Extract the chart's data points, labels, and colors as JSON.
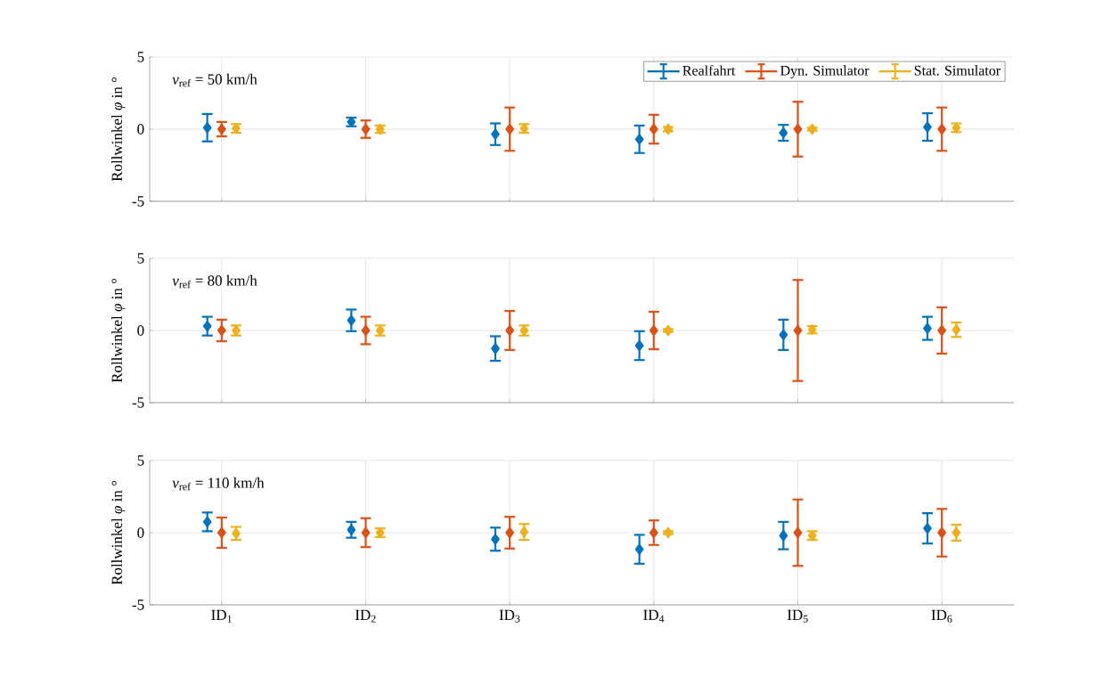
{
  "chart_data": [
    {
      "type": "scatter",
      "categories": [
        null,
        null,
        null,
        null,
        null,
        null
      ],
      "ylabel": "Rollwinkel *φ* in °",
      "annotations": [
        "*v*$_{ref}$ = 50 km/h"
      ],
      "ylim": [
        -5,
        5
      ],
      "yticks": [
        -5,
        0,
        5
      ],
      "grid": true,
      "marker": "diamond",
      "legend": "top right",
      "tick_labels": "y",
      "series": [
        {
          "name": "Realfahrt",
          "color": "#0072bd",
          "values": [
            0.1,
            0.5,
            -0.35,
            -0.7,
            -0.25,
            0.15
          ],
          "errors": [
            0.95,
            0.3,
            0.75,
            0.95,
            0.55,
            0.95
          ]
        },
        {
          "name": "Dyn. Simulator",
          "color": "#d95319",
          "values": [
            0,
            0,
            0,
            0,
            0,
            0
          ],
          "errors": [
            0.5,
            0.6,
            1.5,
            1.0,
            1.9,
            1.5
          ]
        },
        {
          "name": "Stat. Simulator",
          "color": "#edb120",
          "values": [
            0.05,
            0,
            0.05,
            0,
            0,
            0.1
          ],
          "errors": [
            0.3,
            0.25,
            0.3,
            0.15,
            0.1,
            0.3
          ]
        }
      ]
    },
    {
      "type": "scatter",
      "categories": [
        null,
        null,
        null,
        null,
        null,
        null
      ],
      "ylabel": "Rollwinkel *φ* in °",
      "annotations": [
        "*v*$_{ref}$ = 80 km/h"
      ],
      "ylim": [
        -5,
        5
      ],
      "yticks": [
        -5,
        0,
        5
      ],
      "grid": true,
      "marker": "diamond",
      "tick_labels": "y",
      "series": [
        {
          "color": "#0072bd",
          "values": [
            0.3,
            0.7,
            -1.25,
            -1.05,
            -0.3,
            0.15
          ],
          "errors": [
            0.65,
            0.75,
            0.85,
            1.0,
            1.05,
            0.8
          ]
        },
        {
          "color": "#d95319",
          "values": [
            0,
            0,
            0,
            0,
            0,
            0
          ],
          "errors": [
            0.75,
            0.95,
            1.35,
            1.3,
            3.5,
            1.6
          ]
        },
        {
          "color": "#edb120",
          "values": [
            0,
            0,
            0,
            0,
            0.05,
            0.05
          ],
          "errors": [
            0.35,
            0.35,
            0.35,
            0.1,
            0.25,
            0.5
          ]
        }
      ]
    },
    {
      "type": "scatter",
      "categories": [
        "ID$_{1}$",
        "ID$_{2}$",
        "ID$_{3}$",
        "ID$_{4}$",
        "ID$_{5}$",
        "ID$_{6}$"
      ],
      "ylabel": "Rollwinkel *φ* in °",
      "annotations": [
        "*v*$_{ref}$ = 110 km/h"
      ],
      "ylim": [
        -5,
        5
      ],
      "yticks": [
        -5,
        0,
        5
      ],
      "grid": true,
      "marker": "diamond",
      "series": [
        {
          "color": "#0072bd",
          "values": [
            0.75,
            0.2,
            -0.45,
            -1.15,
            -0.2,
            0.3
          ],
          "errors": [
            0.65,
            0.55,
            0.8,
            1.0,
            0.95,
            1.05
          ]
        },
        {
          "color": "#d95319",
          "values": [
            0,
            0,
            0,
            0,
            0,
            0
          ],
          "errors": [
            1.05,
            1.0,
            1.1,
            0.85,
            2.3,
            1.65
          ]
        },
        {
          "color": "#edb120",
          "values": [
            -0.05,
            0,
            0.05,
            0,
            -0.2,
            0
          ],
          "errors": [
            0.45,
            0.3,
            0.55,
            0.1,
            0.3,
            0.55
          ]
        }
      ]
    }
  ]
}
